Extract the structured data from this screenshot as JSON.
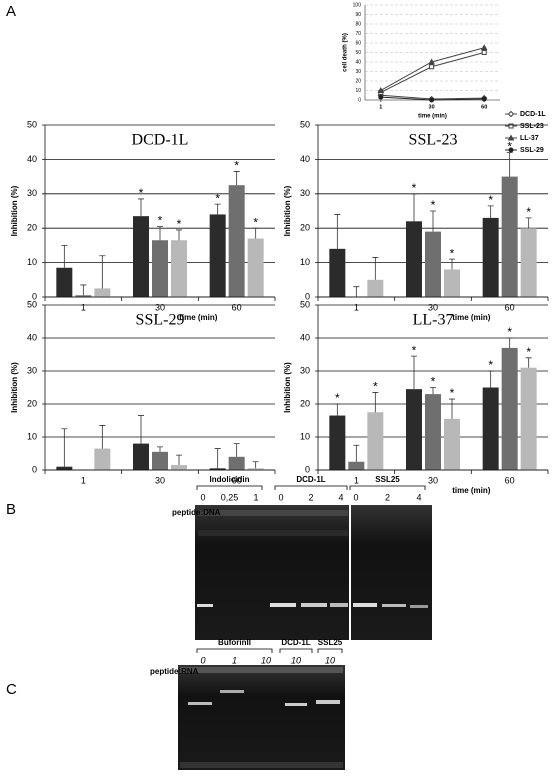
{
  "panel_labels": [
    "A",
    "B",
    "C"
  ],
  "chart_data": [
    {
      "type": "line",
      "ylabel": "cell death (%)",
      "xlabel": "time (min)",
      "x": [
        1,
        30,
        60
      ],
      "xticks": [
        1,
        30,
        60
      ],
      "xlim": [
        -8,
        69
      ],
      "ylim": [
        0,
        100
      ],
      "yticks": [
        0,
        10,
        20,
        30,
        40,
        50,
        60,
        70,
        80,
        90,
        100
      ],
      "grid": true,
      "series": [
        {
          "name": "DCD-1L",
          "color": "#444444",
          "marker": "diamond-open",
          "values": [
            5,
            1,
            2
          ]
        },
        {
          "name": "SSL-23",
          "color": "#444444",
          "marker": "square-open",
          "values": [
            8,
            35,
            50
          ]
        },
        {
          "name": "LL-37",
          "color": "#444444",
          "marker": "triangle",
          "values": [
            10,
            40,
            55
          ]
        },
        {
          "name": "SSL-29",
          "color": "#222222",
          "marker": "circle",
          "values": [
            3,
            0,
            1
          ]
        }
      ]
    },
    {
      "type": "bar",
      "title": "DCD-1L",
      "ylabel": "Inhibition (%)",
      "xlabel": "time (min)",
      "categories": [
        "1",
        "30",
        "60"
      ],
      "ylim": [
        0,
        50
      ],
      "yticks": [
        0,
        10,
        20,
        30,
        40,
        50
      ],
      "grid": true,
      "series": [
        {
          "color": "#2b2b2b",
          "values": [
            8.5,
            23.5,
            24
          ],
          "errors": [
            6.5,
            5,
            3
          ],
          "labels": [
            null,
            "*",
            "*"
          ]
        },
        {
          "color": "#6f6f6f",
          "values": [
            0.5,
            16.5,
            32.5
          ],
          "errors": [
            3,
            4,
            4
          ],
          "labels": [
            null,
            "*",
            "*"
          ]
        },
        {
          "color": "#b8b8b8",
          "values": [
            2.5,
            16.5,
            17
          ],
          "errors": [
            9.5,
            3,
            3
          ],
          "labels": [
            null,
            "*",
            "*"
          ]
        }
      ]
    },
    {
      "type": "bar",
      "title": "SSL-23",
      "ylabel": "Inhibition (%)",
      "xlabel": "time (min)",
      "categories": [
        "1",
        "30",
        "60"
      ],
      "ylim": [
        0,
        50
      ],
      "yticks": [
        0,
        10,
        20,
        30,
        40,
        50
      ],
      "grid": true,
      "series": [
        {
          "color": "#2b2b2b",
          "values": [
            14,
            22,
            23
          ],
          "errors": [
            10,
            8,
            3.5
          ],
          "labels": [
            null,
            "*",
            "*"
          ]
        },
        {
          "color": "#6f6f6f",
          "values": [
            0,
            19,
            35
          ],
          "errors": [
            3,
            6,
            7
          ],
          "labels": [
            null,
            "*",
            "*"
          ]
        },
        {
          "color": "#b8b8b8",
          "values": [
            5,
            8,
            20
          ],
          "errors": [
            6.5,
            3,
            3
          ],
          "labels": [
            null,
            "*",
            "*"
          ]
        }
      ]
    },
    {
      "type": "bar",
      "title": "SSL-29",
      "ylabel": "Inhibition (%)",
      "categories": [
        "1",
        "30",
        "60"
      ],
      "ylim": [
        0,
        50
      ],
      "yticks": [
        0,
        10,
        20,
        30,
        40,
        50
      ],
      "grid": true,
      "series": [
        {
          "color": "#2b2b2b",
          "values": [
            1,
            8,
            0.5
          ],
          "errors": [
            11.5,
            8.5,
            6
          ]
        },
        {
          "color": "#6f6f6f",
          "values": [
            0,
            5.5,
            4
          ],
          "errors": [
            0,
            1.5,
            4
          ]
        },
        {
          "color": "#b8b8b8",
          "values": [
            6.5,
            1.5,
            0.5
          ],
          "errors": [
            7,
            3,
            2
          ]
        }
      ]
    },
    {
      "type": "bar",
      "title": "LL-37",
      "ylabel": "Inhibition (%)",
      "xlabel": "time (min)",
      "categories": [
        "1",
        "30",
        "60"
      ],
      "ylim": [
        0,
        50
      ],
      "yticks": [
        0,
        10,
        20,
        30,
        40,
        50
      ],
      "grid": true,
      "series": [
        {
          "color": "#2b2b2b",
          "values": [
            16.5,
            24.5,
            25
          ],
          "errors": [
            3.5,
            10,
            5
          ],
          "labels": [
            "*",
            "*",
            "*"
          ]
        },
        {
          "color": "#6f6f6f",
          "values": [
            2.5,
            23,
            37
          ],
          "errors": [
            5,
            2,
            3
          ],
          "labels": [
            null,
            "*",
            "*"
          ]
        },
        {
          "color": "#b8b8b8",
          "values": [
            17.5,
            15.5,
            31
          ],
          "errors": [
            6,
            6,
            3
          ],
          "labels": [
            "*",
            "*",
            "*"
          ]
        }
      ]
    }
  ],
  "gel_b": {
    "row_label": "peptide:DNA",
    "groups": [
      {
        "name": "Indolicidin",
        "lanes": [
          "0",
          "0,25",
          "1"
        ]
      },
      {
        "name": "DCD-1L",
        "lanes": [
          "0",
          "2",
          "4"
        ]
      },
      {
        "name": "SSL25",
        "lanes": [
          "0",
          "2",
          "4"
        ]
      }
    ]
  },
  "gel_c": {
    "row_label": "peptide:RNA",
    "groups": [
      {
        "name": "BuforinII",
        "lanes": [
          "0",
          "1",
          "10"
        ]
      },
      {
        "name": "DCD-1L",
        "lanes": [
          "10"
        ]
      },
      {
        "name": "SSL25",
        "lanes": [
          "10"
        ]
      }
    ]
  }
}
